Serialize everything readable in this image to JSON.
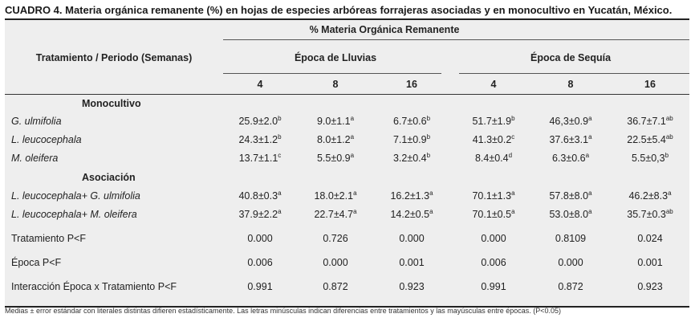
{
  "caption": "CUADRO 4. Materia orgánica remanente (%) en hojas de especies arbóreas forrajeras asociadas y en monocultivo en Yucatán, México.",
  "header": {
    "row_label": "Tratamiento / Periodo (Semanas)",
    "group": "% Materia Orgánica Remanente",
    "season_lluvias": "Época de Lluvias",
    "season_sequia": "Época de Sequía",
    "weeks": [
      "4",
      "8",
      "16",
      "4",
      "8",
      "16"
    ]
  },
  "sections": {
    "monocultivo": "Monocultivo",
    "asociacion": "Asociación"
  },
  "rows": [
    {
      "label": "G. ulmifolia",
      "italic": true,
      "cells": [
        {
          "v": "25.9±2.0",
          "s": "b"
        },
        {
          "v": "9.0±1.1",
          "s": "a"
        },
        {
          "v": "6.7±0.6",
          "s": "b"
        },
        {
          "v": "51.7±1.9",
          "s": "b"
        },
        {
          "v": "46,3±0.9",
          "s": "a"
        },
        {
          "v": "36.7±7.1",
          "s": "ab"
        }
      ]
    },
    {
      "label": "L. leucocephala",
      "italic": true,
      "cells": [
        {
          "v": "24.3±1.2",
          "s": "b"
        },
        {
          "v": "8.0±1.2",
          "s": "a"
        },
        {
          "v": "7.1±0.9",
          "s": "b"
        },
        {
          "v": "41.3±0.2",
          "s": "c"
        },
        {
          "v": "37.6±3.1",
          "s": "a"
        },
        {
          "v": "22.5±5.4",
          "s": "ab"
        }
      ]
    },
    {
      "label": "M. oleifera",
      "italic": true,
      "cells": [
        {
          "v": "13.7±1.1",
          "s": "c"
        },
        {
          "v": "5.5±0.9",
          "s": "a"
        },
        {
          "v": "3.2±0.4",
          "s": "b"
        },
        {
          "v": "8.4±0.4",
          "s": "d"
        },
        {
          "v": "6.3±0.6",
          "s": "a"
        },
        {
          "v": "5.5±0,3",
          "s": "b"
        }
      ]
    },
    {
      "label": "L. leucocephala+ G. ulmifolia",
      "italic": true,
      "cells": [
        {
          "v": "40.8±0.3",
          "s": "a"
        },
        {
          "v": "18.0±2.1",
          "s": "a"
        },
        {
          "v": "16.2±1.3",
          "s": "a"
        },
        {
          "v": "70.1±1.3",
          "s": "a"
        },
        {
          "v": "57.8±8.0",
          "s": "a"
        },
        {
          "v": "46.2±8.3",
          "s": "a"
        }
      ]
    },
    {
      "label": "L. leucocephala+ M. oleifera",
      "italic": true,
      "cells": [
        {
          "v": "37.9±2.2",
          "s": "a"
        },
        {
          "v": "22.7±4.7",
          "s": "a"
        },
        {
          "v": "14.2±0.5",
          "s": "a"
        },
        {
          "v": "70.1±0.5",
          "s": "a"
        },
        {
          "v": "53.0±8.0",
          "s": "a"
        },
        {
          "v": "35.7±0.3",
          "s": "ab"
        }
      ]
    },
    {
      "label": "Tratamiento P<F",
      "italic": false,
      "cells": [
        {
          "v": "0.000",
          "s": ""
        },
        {
          "v": "0.726",
          "s": ""
        },
        {
          "v": "0.000",
          "s": ""
        },
        {
          "v": "0.000",
          "s": ""
        },
        {
          "v": "0.8109",
          "s": ""
        },
        {
          "v": "0.024",
          "s": ""
        }
      ]
    },
    {
      "label": "Época P<F",
      "italic": false,
      "cells": [
        {
          "v": "0.006",
          "s": ""
        },
        {
          "v": "0.000",
          "s": ""
        },
        {
          "v": "0.001",
          "s": ""
        },
        {
          "v": "0.006",
          "s": ""
        },
        {
          "v": "0.000",
          "s": ""
        },
        {
          "v": "0.001",
          "s": ""
        }
      ]
    },
    {
      "label": "Interacción Época x Tratamiento P<F",
      "italic": false,
      "cells": [
        {
          "v": "0.991",
          "s": ""
        },
        {
          "v": "0.872",
          "s": ""
        },
        {
          "v": "0.923",
          "s": ""
        },
        {
          "v": "0.991",
          "s": ""
        },
        {
          "v": "0.872",
          "s": ""
        },
        {
          "v": "0.923",
          "s": ""
        }
      ]
    }
  ],
  "footnote": "Medias ± error estándar con literales distintas difieren estadísticamente. Las letras minúsculas indican diferencias entre tratamientos y las mayúsculas entre épocas. (P<0.05)"
}
